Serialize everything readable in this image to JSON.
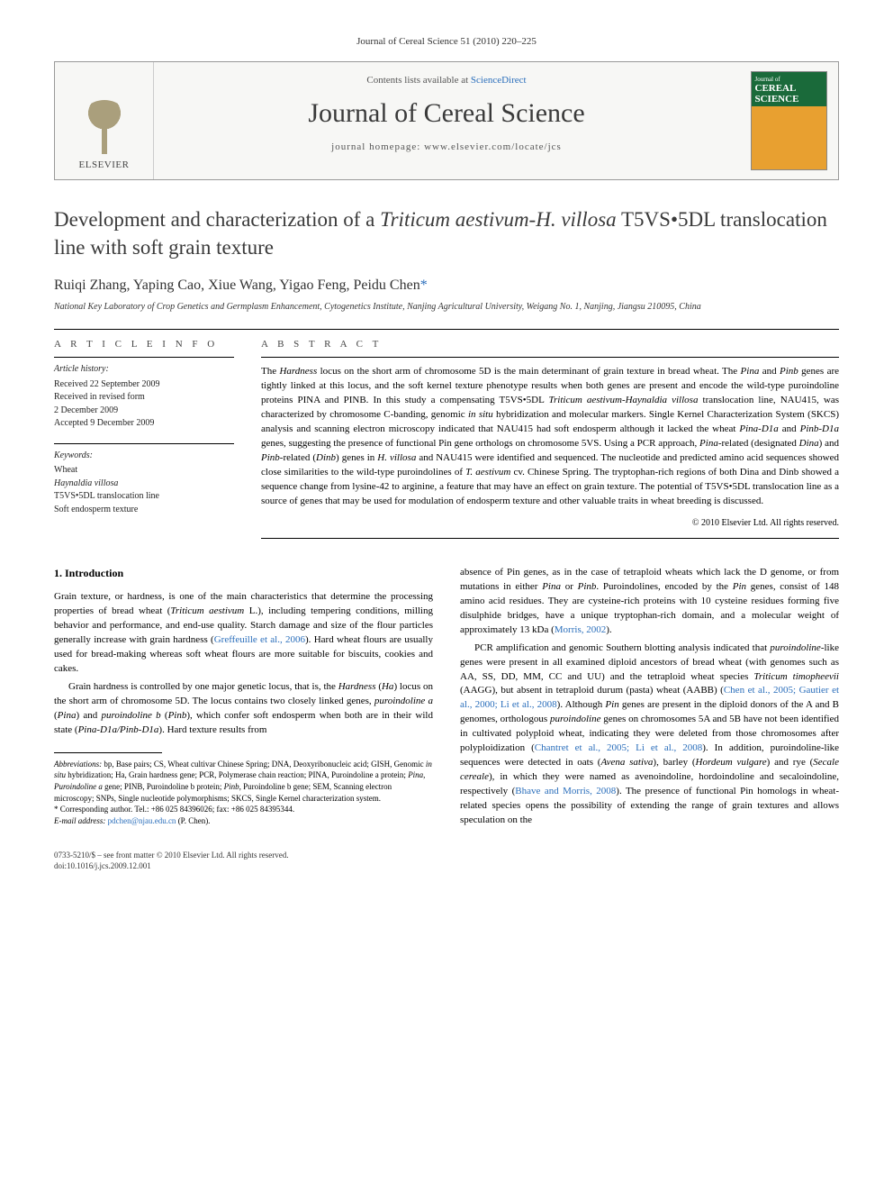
{
  "running_head": "Journal of Cereal Science 51 (2010) 220–225",
  "masthead": {
    "publisher_label": "ELSEVIER",
    "contents_prefix": "Contents lists available at ",
    "contents_link": "ScienceDirect",
    "journal_name": "Journal of Cereal Science",
    "homepage_prefix": "journal homepage: ",
    "homepage_url": "www.elsevier.com/locate/jcs",
    "cover_top": "Journal of",
    "cover_title": "CEREAL SCIENCE"
  },
  "article": {
    "title_1": "Development and characterization of a ",
    "title_ital_1": "Triticum aestivum-H. villosa",
    "title_2": " T5VS•5DL translocation line with soft grain texture",
    "authors_plain": "Ruiqi Zhang, Yaping Cao, Xiue Wang, Yigao Feng, Peidu Chen",
    "corr_marker": "*",
    "affiliation": "National Key Laboratory of Crop Genetics and Germplasm Enhancement, Cytogenetics Institute, Nanjing Agricultural University, Weigang No. 1, Nanjing, Jiangsu 210095, China"
  },
  "info": {
    "head": "A R T I C L E   I N F O",
    "history_label": "Article history:",
    "received": "Received 22 September 2009",
    "revised_1": "Received in revised form",
    "revised_2": "2 December 2009",
    "accepted": "Accepted 9 December 2009",
    "keywords_label": "Keywords:",
    "kw1": "Wheat",
    "kw2": "Haynaldia villosa",
    "kw3": "T5VS•5DL translocation line",
    "kw4": "Soft endosperm texture"
  },
  "abstract": {
    "head": "A B S T R A C T",
    "body_1": "The ",
    "body_ital_1": "Hardness",
    "body_2": " locus on the short arm of chromosome 5D is the main determinant of grain texture in bread wheat. The ",
    "body_ital_2": "Pina",
    "body_3": " and ",
    "body_ital_3": "Pinb",
    "body_4": " genes are tightly linked at this locus, and the soft kernel texture phenotype results when both genes are present and encode the wild-type puroindoline proteins PINA and PINB. In this study a compensating T5VS•5DL ",
    "body_ital_4": "Triticum aestivum-Haynaldia villosa",
    "body_5": " translocation line, NAU415, was characterized by chromosome C-banding, genomic ",
    "body_ital_5": "in situ",
    "body_6": " hybridization and molecular markers. Single Kernel Characterization System (SKCS) analysis and scanning electron microscopy indicated that NAU415 had soft endosperm although it lacked the wheat ",
    "body_ital_6": "Pina-D1a",
    "body_7": " and ",
    "body_ital_7": "Pinb-D1a",
    "body_8": " genes, suggesting the presence of functional Pin gene orthologs on chromosome 5VS. Using a PCR approach, ",
    "body_ital_8": "Pina",
    "body_9": "-related (designated ",
    "body_ital_9": "Dina",
    "body_10": ") and ",
    "body_ital_10": "Pinb",
    "body_11": "-related (",
    "body_ital_11": "Dinb",
    "body_12": ") genes in ",
    "body_ital_12": "H. villosa",
    "body_13": " and NAU415 were identified and sequenced. The nucleotide and predicted amino acid sequences showed close similarities to the wild-type puroindolines of ",
    "body_ital_13": "T. aestivum",
    "body_14": " cv. Chinese Spring. The tryptophan-rich regions of both Dina and Dinb showed a sequence change from lysine-42 to arginine, a feature that may have an effect on grain texture. The potential of T5VS•5DL translocation line as a source of genes that may be used for modulation of endosperm texture and other valuable traits in wheat breeding is discussed.",
    "copyright": "© 2010 Elsevier Ltd. All rights reserved."
  },
  "section1": {
    "head": "1. Introduction",
    "p1_a": "Grain texture, or hardness, is one of the main characteristics that determine the processing properties of bread wheat (",
    "p1_ital_1": "Triticum aestivum",
    "p1_b": " L.), including tempering conditions, milling behavior and performance, and end-use quality. Starch damage and size of the flour particles generally increase with grain hardness (",
    "p1_ref_1": "Greffeuille et al., 2006",
    "p1_c": "). Hard wheat flours are usually used for bread-making whereas soft wheat flours are more suitable for biscuits, cookies and cakes.",
    "p2_a": "Grain hardness is controlled by one major genetic locus, that is, the ",
    "p2_ital_1": "Hardness",
    "p2_b": " (",
    "p2_ital_2": "Ha",
    "p2_c": ") locus on the short arm of chromosome 5D. The locus contains two closely linked genes, ",
    "p2_ital_3": "puroindoline a",
    "p2_d": " (",
    "p2_ital_4": "Pina",
    "p2_e": ") and ",
    "p2_ital_5": "puroindoline b",
    "p2_f": " (",
    "p2_ital_6": "Pinb",
    "p2_g": "), which confer soft endosperm when both are in their wild state (",
    "p2_ital_7": "Pina-D1a/Pinb-D1a",
    "p2_h": "). Hard texture results from",
    "p3_a": "absence of Pin genes, as in the case of tetraploid wheats which lack the D genome, or from mutations in either ",
    "p3_ital_1": "Pina",
    "p3_b": " or ",
    "p3_ital_2": "Pinb",
    "p3_c": ". Puroindolines, encoded by the ",
    "p3_ital_3": "Pin",
    "p3_d": " genes, consist of 148 amino acid residues. They are cysteine-rich proteins with 10 cysteine residues forming five disulphide bridges, have a unique tryptophan-rich domain, and a molecular weight of approximately 13 kDa (",
    "p3_ref_1": "Morris, 2002",
    "p3_e": ").",
    "p4_a": "PCR amplification and genomic Southern blotting analysis indicated that ",
    "p4_ital_1": "puroindoline",
    "p4_b": "-like genes were present in all examined diploid ancestors of bread wheat (with genomes such as AA, SS, DD, MM, CC and UU) and the tetraploid wheat species ",
    "p4_ital_2": "Triticum timopheevii",
    "p4_c": " (AAGG), but absent in tetraploid durum (pasta) wheat (AABB) (",
    "p4_ref_1": "Chen et al., 2005; Gautier et al., 2000; Li et al., 2008",
    "p4_d": "). Although ",
    "p4_ital_3": "Pin",
    "p4_e": " genes are present in the diploid donors of the A and B genomes, orthologous ",
    "p4_ital_4": "puroindoline",
    "p4_f": " genes on chromosomes 5A and 5B have not been identified in cultivated polyploid wheat, indicating they were deleted from those chromosomes after polyploidization (",
    "p4_ref_2": "Chantret et al., 2005; Li et al., 2008",
    "p4_g": "). In addition, puroindoline-like sequences were detected in oats (",
    "p4_ital_5": "Avena sativa",
    "p4_h": "), barley (",
    "p4_ital_6": "Hordeum vulgare",
    "p4_i": ") and rye (",
    "p4_ital_7": "Secale cereale",
    "p4_j": "), in which they were named as avenoindoline, hordoindoline and secaloindoline, respectively (",
    "p4_ref_3": "Bhave and Morris, 2008",
    "p4_k": "). The presence of functional Pin homologs in wheat-related species opens the possibility of extending the range of grain textures and allows speculation on the"
  },
  "footnotes": {
    "abbr_label": "Abbreviations:",
    "abbr_body_1": " bp, Base pairs; CS, Wheat cultivar Chinese Spring; DNA, Deoxyribonucleic acid; GISH, Genomic ",
    "abbr_ital_1": "in situ",
    "abbr_body_2": " hybridization; Ha, Grain hardness gene; PCR, Polymerase chain reaction; PINA, Puroindoline a protein; ",
    "abbr_ital_2": "Pina, Puroindoline a",
    "abbr_body_3": " gene; PINB, Puroindoline b protein; ",
    "abbr_ital_3": "Pinb",
    "abbr_body_4": ", Puroindoline b gene; SEM, Scanning electron microscopy; SNPs, Single nucleotide polymorphisms; SKCS, Single Kernel characterization system.",
    "corr_label": "* Corresponding author. Tel.: +86 025 84396026; fax: +86 025 84395344.",
    "email_label": "E-mail address:",
    "email_value": "pdchen@njau.edu.cn",
    "email_suffix": " (P. Chen)."
  },
  "bottom": {
    "line1": "0733-5210/$ – see front matter © 2010 Elsevier Ltd. All rights reserved.",
    "line2": "doi:10.1016/j.jcs.2009.12.001"
  },
  "colors": {
    "link": "#2a6ebb",
    "text": "#000000",
    "muted": "#555555"
  }
}
